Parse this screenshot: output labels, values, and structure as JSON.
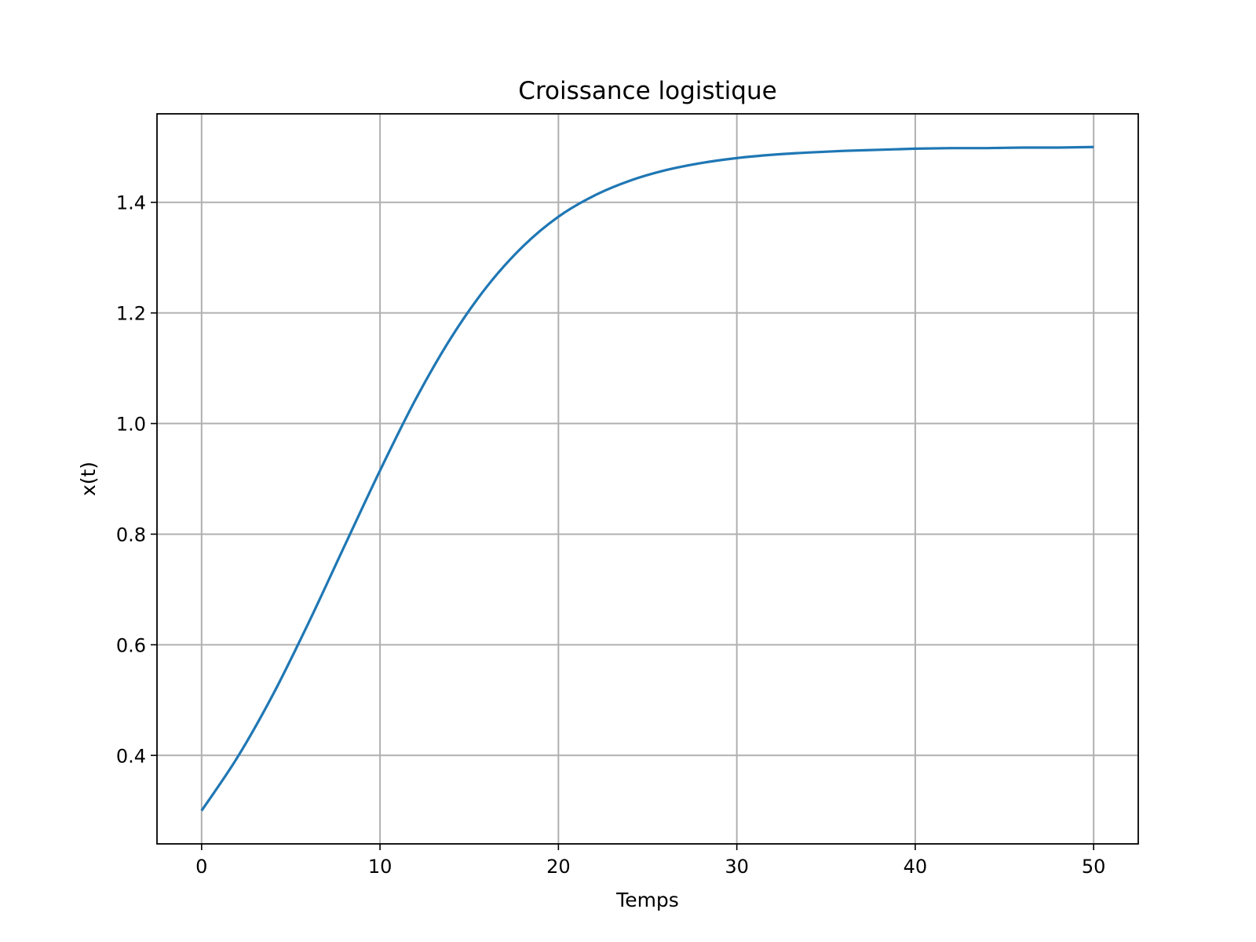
{
  "chart_data": {
    "type": "line",
    "title": "Croissance logistique",
    "xlabel": "Temps",
    "ylabel": "x(t)",
    "xlim": [
      -2.5,
      52.5
    ],
    "ylim": [
      0.24,
      1.56
    ],
    "xticks": [
      0,
      10,
      20,
      30,
      40,
      50
    ],
    "xtick_labels": [
      "0",
      "10",
      "20",
      "30",
      "40",
      "50"
    ],
    "yticks": [
      0.4,
      0.6,
      0.8,
      1.0,
      1.2,
      1.4
    ],
    "ytick_labels": [
      "0.4",
      "0.6",
      "0.8",
      "1.0",
      "1.2",
      "1.4"
    ],
    "grid": true,
    "line_color": "#1f77b4",
    "series": [
      {
        "x": [
          0,
          2,
          4,
          6,
          8,
          10,
          12,
          14,
          16,
          18,
          20,
          22,
          24,
          26,
          28,
          30,
          32,
          34,
          36,
          38,
          40,
          42,
          44,
          46,
          48,
          50
        ],
        "y": [
          0.3,
          0.396,
          0.51,
          0.64,
          0.778,
          0.915,
          1.044,
          1.156,
          1.248,
          1.32,
          1.374,
          1.412,
          1.439,
          1.458,
          1.471,
          1.48,
          1.486,
          1.49,
          1.493,
          1.495,
          1.497,
          1.498,
          1.498,
          1.499,
          1.499,
          1.5
        ]
      }
    ]
  }
}
